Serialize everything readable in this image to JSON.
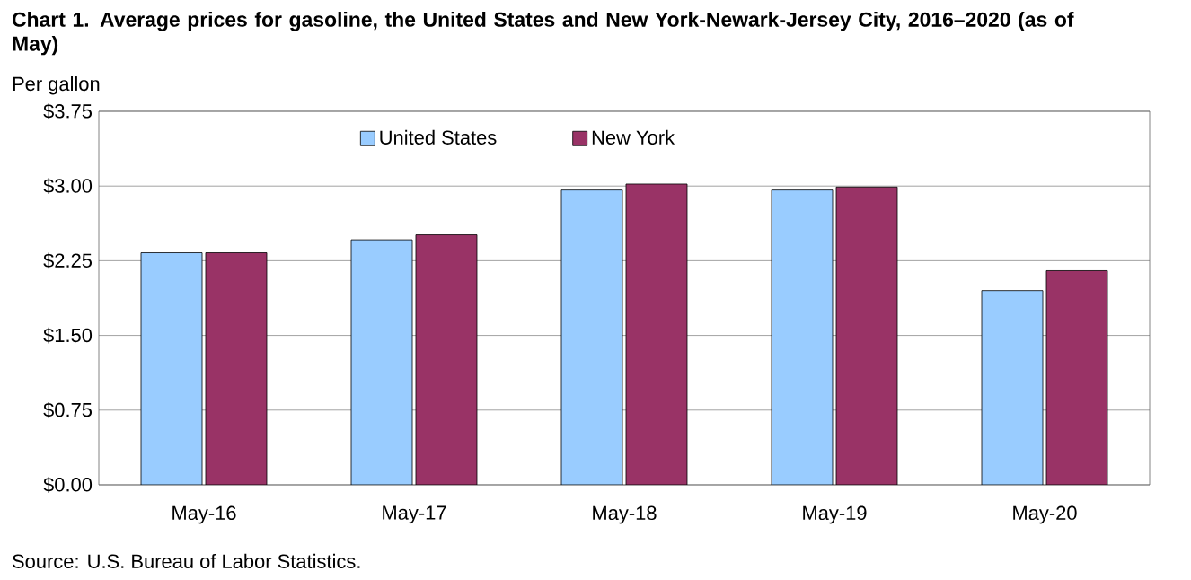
{
  "chart_data": {
    "type": "bar",
    "title": "Chart 1. Average prices for gasoline, the United States and New York-Newark-Jersey City, 2016–2020 (as of May)",
    "ylabel": "Per gallon",
    "annotations": [
      "Source: U.S. Bureau of Labor Statistics."
    ],
    "categories": [
      "May-16",
      "May-17",
      "May-18",
      "May-19",
      "May-20"
    ],
    "series": [
      {
        "name": "United States",
        "color": "#99ccff",
        "values": [
          2.33,
          2.46,
          2.96,
          2.96,
          1.95
        ]
      },
      {
        "name": "New York",
        "color": "#993366",
        "values": [
          2.33,
          2.51,
          3.02,
          2.99,
          2.15
        ]
      }
    ],
    "ylim": [
      0,
      3.75
    ],
    "yticks": [
      {
        "value": 0,
        "label": "$0.00"
      },
      {
        "value": 0.75,
        "label": "$0.75"
      },
      {
        "value": 1.5,
        "label": "$1.50"
      },
      {
        "value": 2.25,
        "label": "$2.25"
      },
      {
        "value": 3,
        "label": "$3.00"
      },
      {
        "value": 3.75,
        "label": "$3.75"
      }
    ],
    "grid": "y",
    "legend": "top"
  }
}
